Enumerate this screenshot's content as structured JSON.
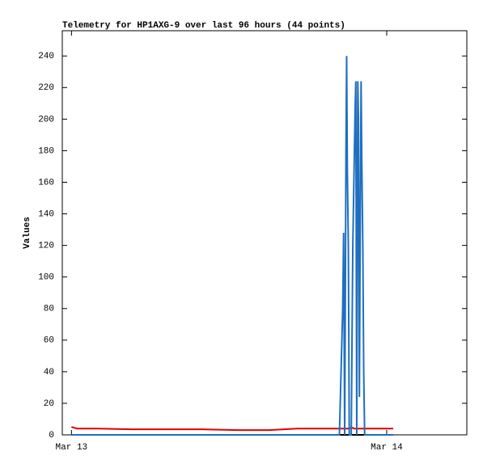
{
  "chart_data": {
    "type": "line",
    "title": "Telemetry for HP1AXG-9 over last 96 hours (44 points)",
    "y_label": "Values",
    "x": [
      0,
      0.43,
      2,
      4.6,
      7,
      10,
      12.7,
      15,
      17.2,
      19,
      20.4,
      20.65,
      20.72,
      20.8,
      20.9,
      20.95,
      21.0,
      21.08,
      21.15,
      21.3,
      21.42,
      21.5,
      21.6,
      21.65,
      21.72,
      21.8,
      21.85,
      21.92,
      22.0,
      22.05,
      22.1,
      22.18,
      22.25,
      22.32,
      22.5,
      22.8,
      23.0,
      23.2,
      23.4,
      23.6,
      23.8,
      24.0,
      24.3,
      24.5
    ],
    "series": [
      {
        "color": "#000000",
        "values": [
          0,
          0,
          0,
          0,
          0,
          0,
          0,
          0,
          0,
          0,
          0,
          0,
          0,
          0,
          0,
          0,
          0,
          0,
          0,
          0,
          0,
          0,
          0,
          0,
          0,
          0,
          0,
          0,
          0,
          0,
          0,
          0,
          0,
          0,
          0,
          0,
          0,
          0,
          0,
          0,
          0,
          0,
          0,
          0
        ]
      },
      {
        "color": "#e00000",
        "values": [
          5,
          4,
          4,
          3.5,
          3.5,
          3.5,
          3,
          3,
          4,
          4,
          4,
          4,
          4,
          4,
          4,
          4,
          4,
          4,
          4,
          4.5,
          4.5,
          4,
          4,
          4,
          4,
          4,
          4,
          4,
          4,
          4,
          4,
          4,
          4,
          4,
          4,
          4,
          4,
          4,
          4,
          4,
          4,
          4,
          4,
          4
        ]
      },
      {
        "color": "#1f6fc0",
        "values": [
          0,
          0,
          0,
          0,
          0,
          0,
          0,
          0,
          0,
          0,
          0,
          80,
          128,
          0,
          180,
          240,
          170,
          120,
          0,
          0,
          120,
          160,
          208,
          224,
          0,
          224,
          200,
          24,
          160,
          224,
          176,
          120,
          40,
          0,
          0,
          0,
          0,
          0,
          0,
          0,
          0,
          0,
          0,
          0
        ]
      }
    ],
    "xlim": [
      -0.7,
      30.1
    ],
    "xticks": [
      {
        "value": 0,
        "label": "Mar 13"
      },
      {
        "value": 24,
        "label": "Mar 14"
      }
    ],
    "ylim": [
      0,
      256
    ],
    "yticks": [
      0,
      20,
      40,
      60,
      80,
      100,
      120,
      140,
      160,
      180,
      200,
      220,
      240
    ],
    "grid": false
  }
}
